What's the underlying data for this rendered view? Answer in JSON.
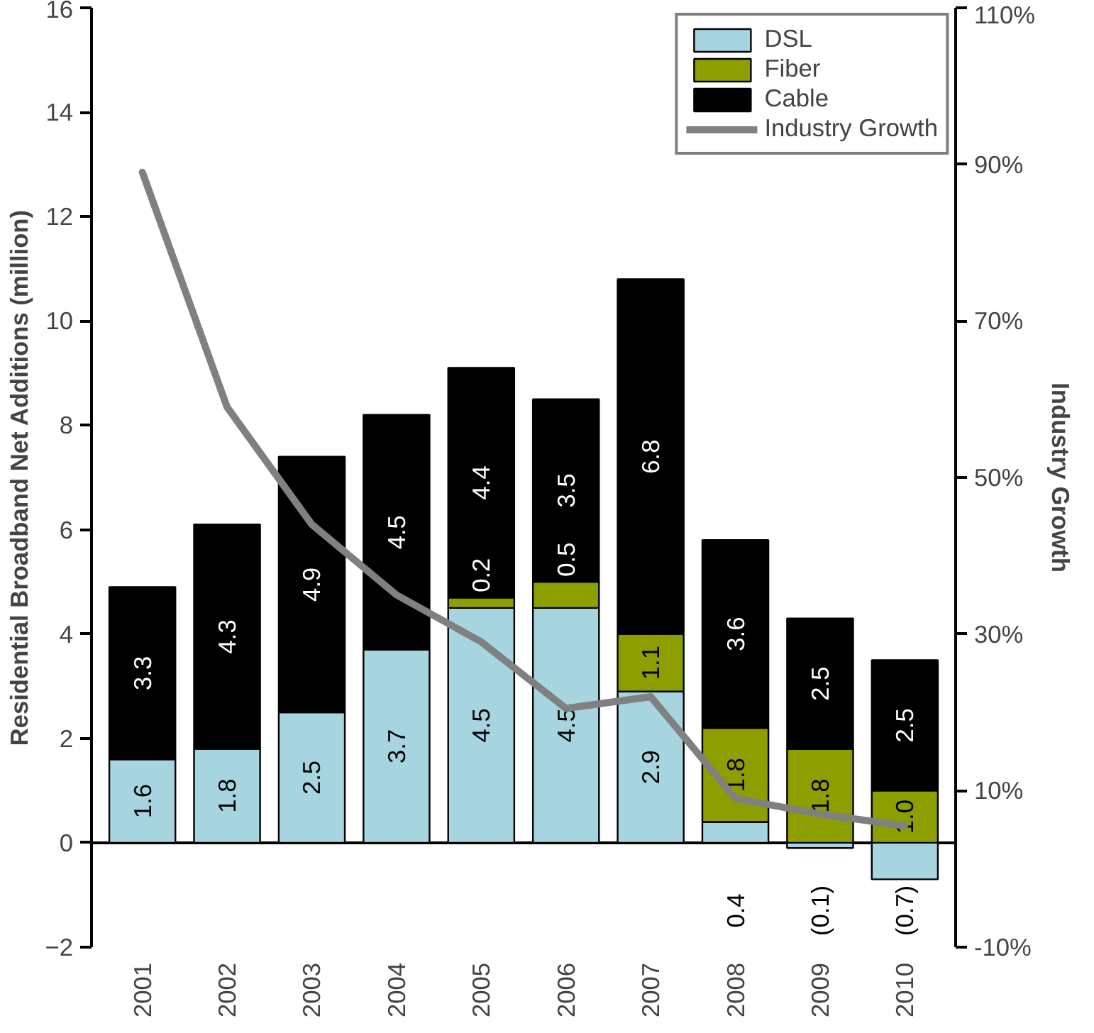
{
  "chart_data": {
    "type": "bar",
    "stacked": true,
    "categories": [
      "2001",
      "2002",
      "2003",
      "2004",
      "2005",
      "2006",
      "2007",
      "2008",
      "2009",
      "2010"
    ],
    "ylabel": "Residential Broadband Net Additions (million)",
    "y2label": "Industry Growth",
    "ylim": [
      -2,
      16
    ],
    "yticks": [
      -2,
      0,
      2,
      4,
      6,
      8,
      10,
      12,
      14,
      16
    ],
    "y2lim": [
      -10,
      110
    ],
    "y2ticks": [
      {
        "value": -10,
        "label": "-10%"
      },
      {
        "value": 10,
        "label": "10%"
      },
      {
        "value": 30,
        "label": "30%"
      },
      {
        "value": 50,
        "label": "50%"
      },
      {
        "value": 70,
        "label": "70%"
      },
      {
        "value": 90,
        "label": "90%"
      },
      {
        "value": 110,
        "label": "110%"
      }
    ],
    "series": [
      {
        "name": "DSL",
        "color": "#a6d5e0",
        "values": [
          1.6,
          1.8,
          2.5,
          3.7,
          4.5,
          4.5,
          2.9,
          0.4,
          -0.1,
          -0.7
        ],
        "value_labels": [
          "1.6",
          "1.8",
          "2.5",
          "3.7",
          "4.5",
          "4.5",
          "2.9",
          "0.4",
          "(0.1)",
          "(0.7)"
        ]
      },
      {
        "name": "Fiber",
        "color": "#8c9e00",
        "values": [
          null,
          null,
          null,
          null,
          0.2,
          0.5,
          1.1,
          1.8,
          1.8,
          1.0
        ],
        "value_labels": [
          null,
          null,
          null,
          null,
          "0.2",
          "0.5",
          "1.1",
          "1.8",
          "1.8",
          "1.0"
        ]
      },
      {
        "name": "Cable",
        "color": "#000000",
        "values": [
          3.3,
          4.3,
          4.9,
          4.5,
          4.4,
          3.5,
          6.8,
          3.6,
          2.5,
          2.5
        ],
        "value_labels": [
          "3.3",
          "4.3",
          "4.9",
          "4.5",
          "4.4",
          "3.5",
          "6.8",
          "3.6",
          "2.5",
          "2.5"
        ]
      },
      {
        "name": "Industry Growth",
        "type": "line",
        "axis": "y2",
        "color": "#808080",
        "values": [
          89,
          59,
          44,
          35,
          29,
          20.5,
          22,
          9,
          7,
          5.5
        ]
      }
    ],
    "ref_lines": [
      {
        "axis": "y",
        "value": 0,
        "color": "#000000"
      }
    ],
    "legend": "top right",
    "grid": false
  }
}
